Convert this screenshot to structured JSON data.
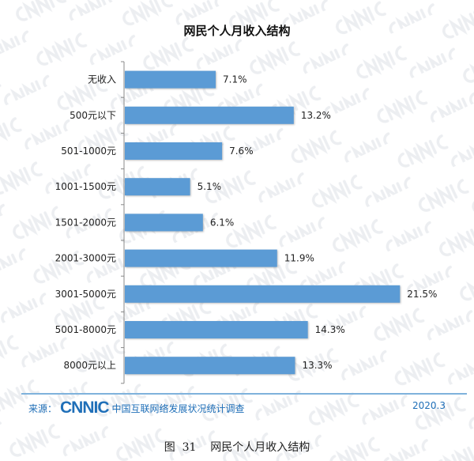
{
  "chart_data": {
    "type": "bar",
    "orientation": "horizontal",
    "title": "网民个人月收入结构",
    "categories": [
      "无收入",
      "500元以下",
      "501-1000元",
      "1001-1500元",
      "1501-2000元",
      "2001-3000元",
      "3001-5000元",
      "5001-8000元",
      "8000元以上"
    ],
    "values": [
      7.1,
      13.2,
      7.6,
      5.1,
      6.1,
      11.9,
      21.5,
      14.3,
      13.3
    ],
    "labels": [
      "7.1%",
      "13.2%",
      "7.6%",
      "5.1%",
      "6.1%",
      "11.9%",
      "21.5%",
      "14.3%",
      "13.3%"
    ],
    "unit": "%",
    "bar_color": "#5b9bd5",
    "grid": false,
    "legend": "none"
  },
  "footer": {
    "source_label": "来源：",
    "logo": "CNNIC",
    "source_text": "中国互联网络发展状况统计调查",
    "date": "2020.3"
  },
  "caption": "图  31    网民个人月收入结构",
  "watermark": "CNNIC"
}
